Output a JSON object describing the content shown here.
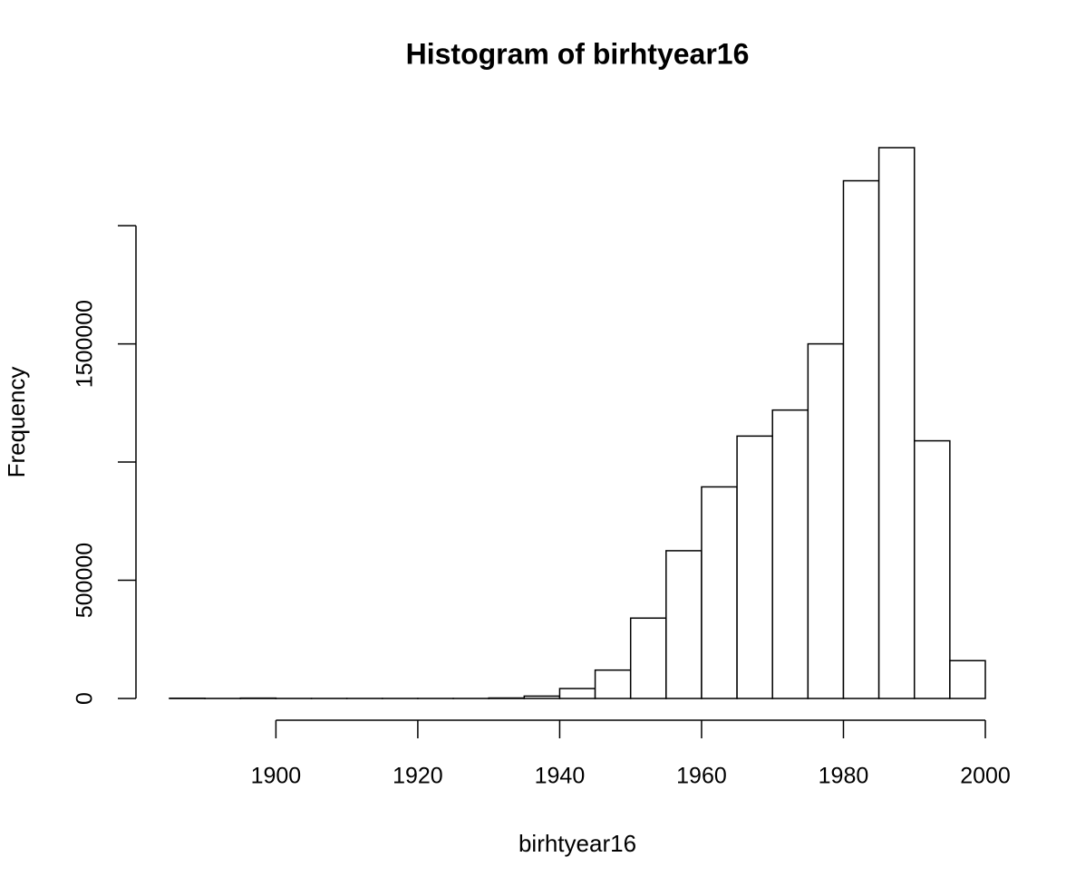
{
  "chart_data": {
    "type": "histogram",
    "title": "Histogram of birhtyear16",
    "x_label": "birhtyear16",
    "y_label": "Frequency",
    "bins": [
      1885,
      1890,
      1895,
      1900,
      1905,
      1910,
      1915,
      1920,
      1925,
      1930,
      1935,
      1940,
      1945,
      1950,
      1955,
      1960,
      1965,
      1970,
      1975,
      1980,
      1985,
      1990,
      1995,
      2000
    ],
    "values": [
      1000,
      200,
      1500,
      200,
      200,
      200,
      200,
      200,
      200,
      2000,
      10000,
      42000,
      120000,
      340000,
      625000,
      895000,
      1110000,
      1220000,
      1500000,
      2190000,
      2330000,
      1090000,
      160000
    ],
    "color": "#ffffff",
    "edge_color": "#000000",
    "xlim": [
      1885,
      2000
    ],
    "xticks": [
      1900,
      1920,
      1940,
      1960,
      1980,
      2000
    ],
    "ylim": [
      0,
      2330000
    ],
    "yticks": [
      0,
      500000,
      {
        "value": 1000000,
        "label": null
      },
      1500000,
      {
        "value": 2000000,
        "label": null
      }
    ]
  }
}
